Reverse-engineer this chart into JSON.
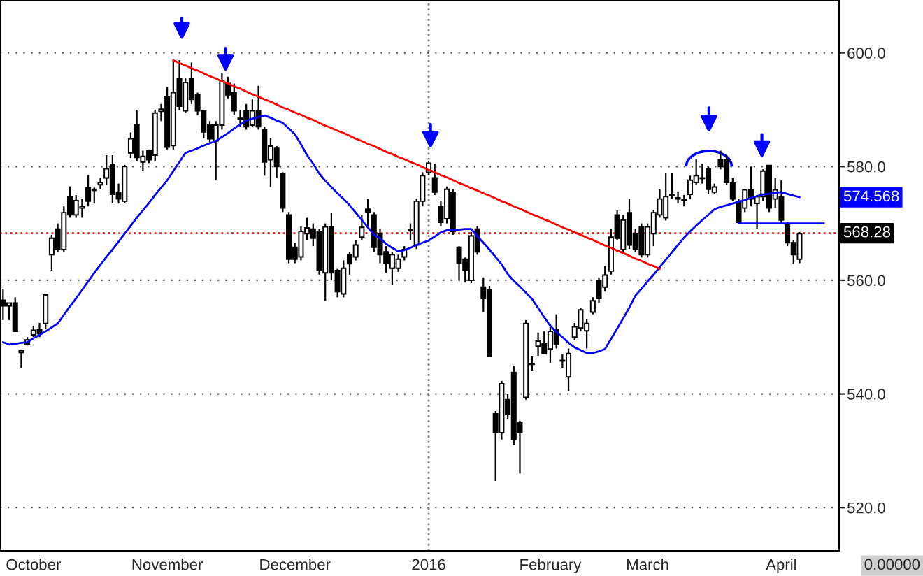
{
  "chart_data": {
    "type": "candlestick",
    "categories": [
      null,
      null,
      null,
      null,
      null,
      "October",
      null,
      null,
      null,
      null,
      null,
      null,
      null,
      null,
      null,
      null,
      null,
      null,
      null,
      null,
      null,
      null,
      null,
      null,
      null,
      null,
      null,
      "November",
      null,
      null,
      null,
      null,
      null,
      null,
      null,
      null,
      null,
      null,
      null,
      null,
      null,
      null,
      null,
      null,
      null,
      null,
      null,
      null,
      "December",
      null,
      null,
      null,
      null,
      null,
      null,
      null,
      null,
      null,
      null,
      null,
      null,
      null,
      null,
      null,
      null,
      null,
      null,
      null,
      null,
      null,
      "2016",
      null,
      null,
      null,
      null,
      null,
      null,
      null,
      null,
      null,
      null,
      null,
      null,
      null,
      null,
      null,
      null,
      null,
      null,
      null,
      "February",
      null,
      null,
      null,
      null,
      null,
      null,
      null,
      null,
      null,
      null,
      null,
      null,
      null,
      null,
      null,
      "March",
      null,
      null,
      null,
      null,
      null,
      null,
      null,
      null,
      null,
      null,
      null,
      null,
      null,
      null,
      null,
      null,
      null,
      null,
      null,
      null,
      null,
      "April",
      null,
      null,
      null,
      null,
      null,
      null,
      null,
      null,
      null
    ],
    "ohlc": [
      [
        556.5,
        558.5,
        553,
        555.5
      ],
      [
        555.5,
        556,
        553,
        556
      ],
      [
        556,
        557,
        551,
        551
      ],
      [
        547.3,
        547.8,
        544.6,
        547.6
      ],
      [
        548.8,
        550,
        548.5,
        549.5
      ],
      [
        550.4,
        552,
        550,
        551.2
      ],
      [
        551.4,
        552.5,
        550,
        550.6
      ],
      [
        552.4,
        557.6,
        551.5,
        557.4
      ],
      [
        564.5,
        568,
        561.7,
        567.4
      ],
      [
        569,
        570,
        565,
        565.4
      ],
      [
        565.4,
        573,
        565,
        571.9
      ],
      [
        574.7,
        576.5,
        571,
        571.5
      ],
      [
        571.5,
        575,
        571,
        574
      ],
      [
        572.7,
        574.3,
        571,
        573
      ],
      [
        576.3,
        578.5,
        573,
        573.9
      ],
      [
        575.8,
        576.3,
        573.5,
        576
      ],
      [
        576.8,
        578,
        576,
        577.2
      ],
      [
        578,
        582,
        576.8,
        579.6
      ],
      [
        580.4,
        582,
        573.5,
        575.1
      ],
      [
        575.5,
        577,
        573.5,
        574.3
      ],
      [
        573.9,
        580.3,
        573.6,
        580
      ],
      [
        582.4,
        586,
        581.5,
        584.9
      ],
      [
        587.3,
        590,
        581,
        581.6
      ],
      [
        580.8,
        582.8,
        579.2,
        581.8
      ],
      [
        582.8,
        583,
        580.6,
        581.2
      ],
      [
        582,
        590,
        581,
        589.4
      ],
      [
        589.7,
        591,
        588,
        590.1
      ],
      [
        592.2,
        594,
        583,
        583.4
      ],
      [
        583.7,
        598.7,
        583,
        593
      ],
      [
        595.4,
        598.7,
        590,
        590.6
      ],
      [
        589.8,
        595.5,
        589.5,
        594.8
      ],
      [
        595.4,
        598.3,
        591,
        591.8
      ],
      [
        592.6,
        593,
        589,
        589.8
      ],
      [
        589.8,
        590,
        585,
        586.1
      ],
      [
        587.3,
        588,
        584,
        584.9
      ],
      [
        584.5,
        588,
        577.6,
        587.3
      ],
      [
        587.3,
        596.4,
        586.5,
        595
      ],
      [
        594.6,
        595.8,
        592,
        592.6
      ],
      [
        593,
        594.6,
        589,
        589.8
      ],
      [
        588.3,
        590,
        587,
        588.5
      ],
      [
        589.8,
        591,
        586.5,
        587
      ],
      [
        587.3,
        591.8,
        587,
        589.8
      ],
      [
        589.8,
        594.2,
        586.5,
        587
      ],
      [
        586.5,
        587,
        578.4,
        580.8
      ],
      [
        581.2,
        585,
        576.4,
        583.6
      ],
      [
        583.2,
        583.6,
        578,
        580
      ],
      [
        578.8,
        579,
        572,
        572.7
      ],
      [
        571.5,
        572,
        563,
        563.7
      ],
      [
        565.8,
        566.5,
        563,
        563.7
      ],
      [
        564.1,
        569.5,
        563.5,
        568.6
      ],
      [
        568.2,
        571,
        567,
        569.2
      ],
      [
        569,
        570,
        566,
        567.4
      ],
      [
        568.6,
        569,
        561,
        561.7
      ],
      [
        561.3,
        570,
        556.4,
        569.4
      ],
      [
        569.4,
        571.9,
        560,
        561.3
      ],
      [
        561.7,
        562,
        557,
        558
      ],
      [
        557.6,
        563.5,
        557,
        562.1
      ],
      [
        564.5,
        565,
        561,
        562.9
      ],
      [
        564.1,
        567,
        563.5,
        566.2
      ],
      [
        567.6,
        571.5,
        567,
        569.3
      ],
      [
        572.5,
        574.3,
        569.4,
        572
      ],
      [
        571.5,
        572,
        565,
        565.8
      ],
      [
        568.2,
        569,
        563,
        564.5
      ],
      [
        565,
        566,
        561.3,
        563
      ],
      [
        562.1,
        565,
        559.2,
        564.5
      ],
      [
        562.1,
        564.5,
        561.5,
        563.7
      ],
      [
        564.1,
        566,
        563.5,
        565.4
      ],
      [
        568.7,
        570,
        567,
        568.9
      ],
      [
        566.2,
        574.3,
        565.5,
        573.9
      ],
      [
        573.9,
        579,
        573,
        578.4
      ],
      [
        579,
        581,
        578.5,
        580.6
      ],
      [
        578,
        580.5,
        575,
        575.5
      ],
      [
        573,
        574,
        569.5,
        570.2
      ],
      [
        570.8,
        576.5,
        570,
        576
      ],
      [
        575.5,
        576,
        568,
        568.6
      ],
      [
        565.8,
        566,
        560,
        563
      ],
      [
        563.7,
        564,
        559.6,
        561.7
      ],
      [
        560,
        568.5,
        559.5,
        567.8
      ],
      [
        569,
        569.5,
        564.5,
        565
      ],
      [
        558.8,
        560.5,
        554.4,
        556.8
      ],
      [
        558.4,
        559,
        546.5,
        546.7
      ],
      [
        536.5,
        537,
        524.7,
        533.2
      ],
      [
        533.2,
        542.3,
        532,
        541.8
      ],
      [
        539,
        540,
        535.5,
        536.5
      ],
      [
        543.8,
        545,
        531,
        532
      ],
      [
        534.9,
        535.3,
        526,
        533.2
      ],
      [
        539.4,
        553,
        539,
        552.4
      ],
      [
        545.3,
        546.7,
        544,
        545.2
      ],
      [
        548.4,
        550.8,
        546.7,
        549.3
      ],
      [
        548.8,
        551,
        547,
        547.1
      ],
      [
        547.9,
        552.3,
        545.5,
        551
      ],
      [
        551.4,
        554,
        548,
        548.8
      ],
      [
        545.8,
        547,
        544.5,
        545.9
      ],
      [
        543,
        548,
        540.5,
        547.1
      ],
      [
        550,
        552.5,
        549.5,
        551.8
      ],
      [
        551.6,
        555.2,
        551,
        554.8
      ],
      [
        551.1,
        553.2,
        548,
        552.4
      ],
      [
        554.4,
        557,
        554,
        556.4
      ],
      [
        560,
        560.5,
        556,
        556.8
      ],
      [
        558.8,
        562.5,
        558,
        560.9
      ],
      [
        561.6,
        569,
        561,
        567.6
      ],
      [
        571.5,
        572.3,
        567,
        567.4
      ],
      [
        565.4,
        571.5,
        565,
        570.6
      ],
      [
        571.9,
        574.3,
        565.5,
        566.2
      ],
      [
        568.2,
        569,
        565,
        565.4
      ],
      [
        569.4,
        570,
        564,
        564.5
      ],
      [
        564.5,
        570,
        564,
        569.4
      ],
      [
        568.2,
        572.3,
        566,
        571.9
      ],
      [
        571.5,
        576,
        571,
        574.3
      ],
      [
        571,
        578.8,
        570.5,
        574.7
      ],
      [
        575,
        578.8,
        574.3,
        575.1
      ],
      [
        574.3,
        575.5,
        573.5,
        574.5
      ],
      [
        574.2,
        575,
        573,
        574.1
      ],
      [
        575.1,
        578.4,
        574.3,
        577.6
      ],
      [
        577.2,
        581.3,
        576.8,
        578.4
      ],
      [
        577.9,
        580.4,
        577,
        578
      ],
      [
        579.6,
        580,
        575.1,
        576
      ],
      [
        575.5,
        577,
        575.1,
        576.4
      ],
      [
        581.2,
        582.8,
        579.5,
        580
      ],
      [
        581.2,
        582,
        576.8,
        577.2
      ],
      [
        577.2,
        578,
        573.9,
        574.3
      ],
      [
        573.9,
        574.3,
        570,
        570.2
      ],
      [
        572.7,
        576,
        572,
        575.9
      ],
      [
        575.9,
        580,
        573,
        574.3
      ],
      [
        573.5,
        575,
        569,
        574.7
      ],
      [
        574.7,
        579.5,
        574,
        579.2
      ],
      [
        580.2,
        580.2,
        572,
        572.7
      ],
      [
        574.3,
        578,
        572.7,
        575.9
      ],
      [
        574.7,
        577.6,
        570,
        570.6
      ],
      [
        569.8,
        570.2,
        566,
        566.6
      ],
      [
        566.6,
        567,
        562.9,
        564.5
      ],
      [
        563.7,
        568.5,
        563,
        568.2
      ],
      null,
      null,
      null,
      null,
      null,
      null
    ],
    "series": [
      {
        "type": "line",
        "color": "#0000ff",
        "values": [
          549.1,
          548.7,
          548.8,
          549,
          549.1,
          549.8,
          550.4,
          551,
          551.7,
          552.4,
          553.9,
          555.4,
          556.8,
          558.3,
          559.8,
          561.3,
          562.7,
          564.1,
          565.4,
          566.8,
          568.2,
          569.6,
          571,
          572.3,
          573.6,
          575,
          576.3,
          577.6,
          579.2,
          580.8,
          582.4,
          582.8,
          583.2,
          583.7,
          584.1,
          584.5,
          585.2,
          585.9,
          586.7,
          587.4,
          588.1,
          588.4,
          588.7,
          589,
          588.6,
          588.1,
          587.7,
          586.7,
          585.7,
          583.9,
          582,
          580.5,
          578.8,
          577.5,
          576.4,
          575.3,
          574.3,
          573.2,
          571.9,
          570.6,
          569.3,
          568,
          567.4,
          566.4,
          565.7,
          565.1,
          565.3,
          565.7,
          566.2,
          566.6,
          567,
          567.7,
          568.4,
          568.8,
          568.8,
          568.9,
          569,
          569,
          567.8,
          566.6,
          565.4,
          564.1,
          562.8,
          561.1,
          559.9,
          558.9,
          557.8,
          556.7,
          555.1,
          553.5,
          552,
          550.9,
          550,
          549,
          548.2,
          547.7,
          547.2,
          547.2,
          547.5,
          547.9,
          549.7,
          551.5,
          553.3,
          555.2,
          557.3,
          558.5,
          559.8,
          561,
          562.3,
          563.6,
          564.9,
          566.2,
          567.5,
          568.6,
          569.6,
          570.6,
          571.5,
          572.5,
          572.9,
          573.2,
          573.5,
          573.8,
          574.1,
          574.5,
          574.8,
          575.1,
          575.2,
          575.4,
          575.5,
          575.2,
          574.9,
          574.6,
          null,
          null,
          null,
          null,
          null,
          null
        ]
      },
      {
        "type": "line",
        "color": "#ff0000",
        "values": [
          null,
          null,
          null,
          null,
          null,
          null,
          null,
          null,
          null,
          null,
          null,
          null,
          null,
          null,
          null,
          null,
          null,
          null,
          null,
          null,
          null,
          null,
          null,
          null,
          null,
          null,
          null,
          null,
          598.7,
          598.2,
          597.8,
          597.3,
          596.9,
          596.4,
          595.9,
          595.5,
          595.0,
          594.6,
          594.1,
          593.7,
          593.2,
          592.7,
          592.3,
          591.8,
          591.4,
          590.9,
          590.4,
          590.0,
          589.5,
          589.1,
          588.6,
          588.2,
          587.7,
          587.2,
          586.8,
          586.3,
          585.9,
          585.4,
          584.9,
          584.5,
          584.0,
          583.6,
          583.1,
          582.6,
          582.2,
          581.7,
          581.3,
          580.8,
          580.4,
          579.9,
          579.4,
          579.0,
          578.5,
          578.1,
          577.6,
          577.1,
          576.7,
          576.2,
          575.8,
          575.3,
          574.9,
          574.4,
          573.9,
          573.5,
          573.0,
          572.6,
          572.1,
          571.6,
          571.2,
          570.7,
          570.3,
          569.8,
          569.3,
          568.9,
          568.4,
          568.0,
          567.5,
          567.1,
          566.6,
          566.1,
          565.7,
          565.2,
          564.8,
          564.3,
          563.8,
          563.4,
          562.9,
          562.5,
          562.0,
          null,
          null,
          null,
          null,
          null,
          null,
          null,
          null,
          null,
          null,
          null,
          null,
          null,
          null,
          null,
          null,
          null,
          null,
          null,
          null,
          null,
          null,
          null,
          null,
          null,
          null,
          null,
          null,
          null
        ]
      },
      {
        "type": "line",
        "color": "#0000ff",
        "values": [
          null,
          null,
          null,
          null,
          null,
          null,
          null,
          null,
          null,
          null,
          null,
          null,
          null,
          null,
          null,
          null,
          null,
          null,
          null,
          null,
          null,
          null,
          null,
          null,
          null,
          null,
          null,
          null,
          null,
          null,
          null,
          null,
          null,
          null,
          null,
          null,
          null,
          null,
          null,
          null,
          null,
          null,
          null,
          null,
          null,
          null,
          null,
          null,
          null,
          null,
          null,
          null,
          null,
          null,
          null,
          null,
          null,
          null,
          null,
          null,
          null,
          null,
          null,
          null,
          null,
          null,
          null,
          null,
          null,
          null,
          null,
          null,
          null,
          null,
          null,
          null,
          null,
          null,
          null,
          null,
          null,
          null,
          null,
          null,
          null,
          null,
          null,
          null,
          null,
          null,
          null,
          null,
          null,
          null,
          null,
          null,
          null,
          null,
          null,
          null,
          null,
          null,
          null,
          null,
          null,
          null,
          null,
          null,
          null,
          null,
          null,
          null,
          null,
          null,
          null,
          null,
          null,
          null,
          null,
          null,
          null,
          570,
          570,
          570,
          570,
          570,
          570,
          570,
          570,
          570,
          570,
          570,
          570,
          570,
          570,
          570,
          null,
          null
        ]
      }
    ],
    "ylim": [
      512.4,
      609.3
    ],
    "yticks": [
      {
        "value": 520,
        "label": "520.0"
      },
      {
        "value": 540,
        "label": "540.0"
      },
      {
        "value": 560,
        "label": "560.0"
      },
      {
        "value": 580,
        "label": "580.0"
      },
      {
        "value": 600,
        "label": "600.0"
      }
    ],
    "grid": "y",
    "ref_lines": [
      {
        "axis": "y",
        "value": 568.28,
        "label": "568.28",
        "color": "#ff0000",
        "line_style": "dotted"
      },
      {
        "axis": "x",
        "value": "2016",
        "color": "#808080",
        "line_style": "dotted"
      }
    ],
    "annotations": [
      "574.568",
      "0.00000"
    ]
  }
}
